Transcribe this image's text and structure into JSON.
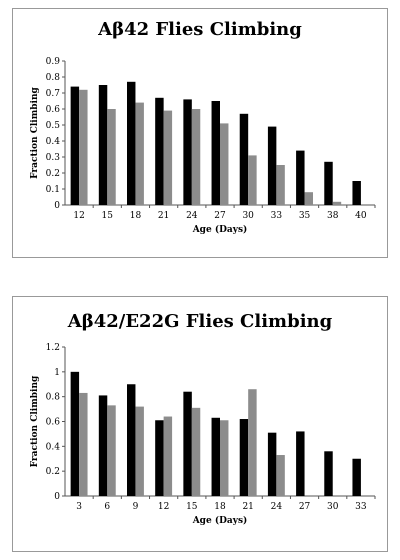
{
  "chart_data": [
    {
      "type": "bar",
      "title": "Aβ42 Flies Climbing",
      "xlabel": "Age (Days)",
      "ylabel": "Fraction Climbing",
      "ylim": [
        0,
        0.9
      ],
      "yticks": [
        "0",
        "0.1",
        "0.2",
        "0.3",
        "0.4",
        "0.5",
        "0.6",
        "0.7",
        "0.8",
        "0.9"
      ],
      "categories": [
        "12",
        "15",
        "18",
        "21",
        "24",
        "27",
        "30",
        "33",
        "35",
        "38",
        "40"
      ],
      "series": [
        {
          "color": "#000000",
          "values": [
            0.74,
            0.75,
            0.77,
            0.67,
            0.66,
            0.65,
            0.57,
            0.49,
            0.34,
            0.27,
            0.15
          ]
        },
        {
          "color": "#8c8c8c",
          "values": [
            0.72,
            0.6,
            0.64,
            0.59,
            0.6,
            0.51,
            0.31,
            0.25,
            0.08,
            0.02,
            null
          ]
        }
      ],
      "grid": false,
      "legend": "none"
    },
    {
      "type": "bar",
      "title": "Aβ42/E22G Flies Climbing",
      "xlabel": "Age (Days)",
      "ylabel": "Fraction Climbing",
      "ylim": [
        0,
        1.2
      ],
      "yticks": [
        "0",
        "0.2",
        "0.4",
        "0.6",
        "0.8",
        "1",
        "1.2"
      ],
      "categories": [
        "3",
        "6",
        "9",
        "12",
        "15",
        "18",
        "21",
        "24",
        "27",
        "30",
        "33"
      ],
      "series": [
        {
          "color": "#000000",
          "values": [
            1.0,
            0.81,
            0.9,
            0.61,
            0.84,
            0.63,
            0.62,
            0.51,
            0.52,
            0.36,
            0.3
          ]
        },
        {
          "color": "#8c8c8c",
          "values": [
            0.83,
            0.73,
            0.72,
            0.64,
            0.71,
            0.61,
            0.86,
            0.33,
            null,
            null,
            null
          ]
        }
      ],
      "grid": false,
      "legend": "none"
    }
  ]
}
